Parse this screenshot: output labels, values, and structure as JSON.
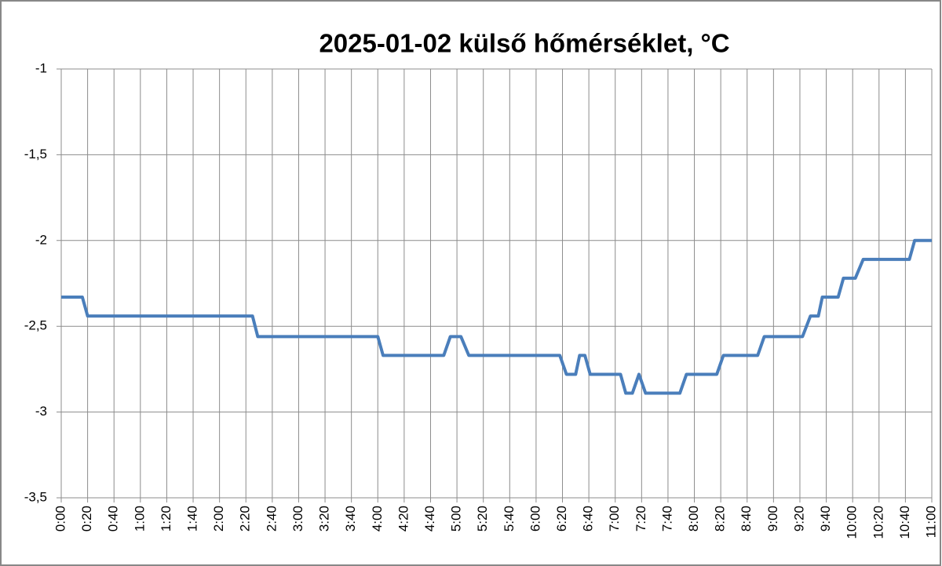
{
  "chart_data": {
    "type": "line",
    "title": "2025-01-02 külső hőmérséklet, °C",
    "x": [
      0,
      16,
      20,
      145,
      149,
      240,
      244,
      290,
      295,
      303,
      309,
      378,
      383,
      390,
      393,
      397,
      401,
      424,
      428,
      433,
      438,
      443,
      469,
      474,
      497,
      502,
      528,
      533,
      562,
      568,
      574,
      577,
      589,
      593,
      602,
      608,
      643,
      647,
      660
    ],
    "series": [
      {
        "color": "#4a7ebb",
        "values": [
          -2.33,
          -2.33,
          -2.44,
          -2.44,
          -2.56,
          -2.56,
          -2.67,
          -2.67,
          -2.56,
          -2.56,
          -2.67,
          -2.67,
          -2.78,
          -2.78,
          -2.67,
          -2.67,
          -2.78,
          -2.78,
          -2.89,
          -2.89,
          -2.78,
          -2.89,
          -2.89,
          -2.78,
          -2.78,
          -2.67,
          -2.67,
          -2.56,
          -2.56,
          -2.44,
          -2.44,
          -2.33,
          -2.33,
          -2.22,
          -2.22,
          -2.11,
          -2.11,
          -2,
          -2
        ]
      }
    ],
    "xlim": [
      0,
      660
    ],
    "xticks": [
      {
        "value": 0,
        "label": "0:00"
      },
      {
        "value": 20,
        "label": "0:20"
      },
      {
        "value": 40,
        "label": "0:40"
      },
      {
        "value": 60,
        "label": "1:00"
      },
      {
        "value": 80,
        "label": "1:20"
      },
      {
        "value": 100,
        "label": "1:40"
      },
      {
        "value": 120,
        "label": "2:00"
      },
      {
        "value": 140,
        "label": "2:20"
      },
      {
        "value": 160,
        "label": "2:40"
      },
      {
        "value": 180,
        "label": "3:00"
      },
      {
        "value": 200,
        "label": "3:20"
      },
      {
        "value": 220,
        "label": "3:40"
      },
      {
        "value": 240,
        "label": "4:00"
      },
      {
        "value": 260,
        "label": "4:20"
      },
      {
        "value": 280,
        "label": "4:40"
      },
      {
        "value": 300,
        "label": "5:00"
      },
      {
        "value": 320,
        "label": "5:20"
      },
      {
        "value": 340,
        "label": "5:40"
      },
      {
        "value": 360,
        "label": "6:00"
      },
      {
        "value": 380,
        "label": "6:20"
      },
      {
        "value": 400,
        "label": "6:40"
      },
      {
        "value": 420,
        "label": "7:00"
      },
      {
        "value": 440,
        "label": "7:20"
      },
      {
        "value": 460,
        "label": "7:40"
      },
      {
        "value": 480,
        "label": "8:00"
      },
      {
        "value": 500,
        "label": "8:20"
      },
      {
        "value": 520,
        "label": "8:40"
      },
      {
        "value": 540,
        "label": "9:00"
      },
      {
        "value": 560,
        "label": "9:20"
      },
      {
        "value": 580,
        "label": "9:40"
      },
      {
        "value": 600,
        "label": "10:00"
      },
      {
        "value": 620,
        "label": "10:20"
      },
      {
        "value": 640,
        "label": "10:40"
      },
      {
        "value": 660,
        "label": "11:00"
      }
    ],
    "ylim": [
      -3.5,
      -1
    ],
    "yticks": [
      {
        "value": -3.5,
        "label": "-3,5"
      },
      -3,
      {
        "value": -2.5,
        "label": "-2,5"
      },
      -2,
      {
        "value": -1.5,
        "label": "-1,5"
      },
      -1
    ],
    "grid": true
  }
}
